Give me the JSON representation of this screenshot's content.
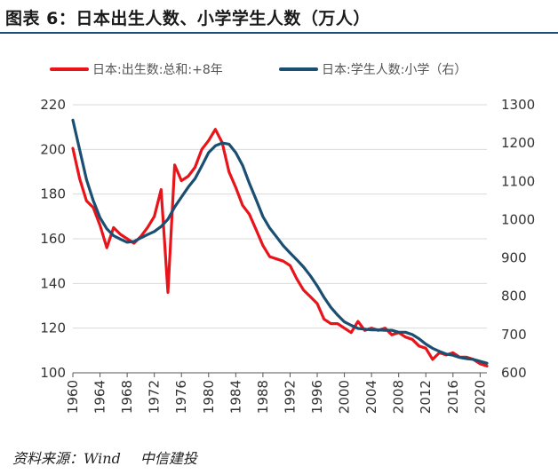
{
  "title": "图表 6：日本出生人数、小学学生人数（万人）",
  "source": {
    "label": "资料来源：Wind",
    "org": "中信建投"
  },
  "chart_data": {
    "type": "line",
    "x_ticks": [
      "1960",
      "1964",
      "1968",
      "1972",
      "1976",
      "1980",
      "1984",
      "1988",
      "1992",
      "1996",
      "2000",
      "2004",
      "2008",
      "2012",
      "2016",
      "2020"
    ],
    "xlim": [
      1960,
      2021
    ],
    "y_left": {
      "ticks": [
        "100",
        "120",
        "140",
        "160",
        "180",
        "200",
        "220"
      ],
      "lim": [
        100,
        220
      ]
    },
    "y_right": {
      "ticks": [
        "600",
        "700",
        "800",
        "900",
        "1000",
        "1100",
        "1200",
        "1300"
      ],
      "lim": [
        600,
        1300
      ]
    },
    "grid": "horizontal",
    "legend_position": "top",
    "series": [
      {
        "name": "日本:出生数:总和:+8年",
        "axis": "left",
        "color": "#e8141a",
        "x": [
          1960,
          1961,
          1962,
          1963,
          1964,
          1965,
          1966,
          1967,
          1968,
          1969,
          1970,
          1971,
          1972,
          1973,
          1974,
          1975,
          1976,
          1977,
          1978,
          1979,
          1980,
          1981,
          1982,
          1983,
          1984,
          1985,
          1986,
          1987,
          1988,
          1989,
          1990,
          1991,
          1992,
          1993,
          1994,
          1995,
          1996,
          1997,
          1998,
          1999,
          2000,
          2001,
          2002,
          2003,
          2004,
          2005,
          2006,
          2007,
          2008,
          2009,
          2010,
          2011,
          2012,
          2013,
          2014,
          2015,
          2016,
          2017,
          2018,
          2019,
          2020,
          2021
        ],
        "values": [
          200.5,
          187,
          177,
          174,
          166,
          156,
          165,
          162,
          160,
          158,
          161,
          165,
          170,
          182,
          136,
          193,
          186,
          188,
          192,
          200,
          204,
          209,
          203,
          190,
          183,
          175,
          171,
          164,
          157,
          152,
          151,
          150,
          148,
          142,
          137,
          134,
          131,
          124,
          122,
          122,
          120,
          118,
          123,
          119,
          120,
          119,
          120,
          117,
          118,
          116,
          115,
          112,
          111,
          106,
          109,
          108,
          109,
          107,
          107,
          106,
          104,
          103
        ]
      },
      {
        "name": "日本:学生人数:小学（右）",
        "axis": "right",
        "color": "#1b4f72",
        "x": [
          1960,
          1961,
          1962,
          1963,
          1964,
          1965,
          1966,
          1967,
          1968,
          1969,
          1970,
          1971,
          1972,
          1973,
          1974,
          1975,
          1976,
          1977,
          1978,
          1979,
          1980,
          1981,
          1982,
          1983,
          1984,
          1985,
          1986,
          1987,
          1988,
          1989,
          1990,
          1991,
          1992,
          1993,
          1994,
          1995,
          1996,
          1997,
          1998,
          1999,
          2000,
          2001,
          2002,
          2003,
          2004,
          2005,
          2006,
          2007,
          2008,
          2009,
          2010,
          2011,
          2012,
          2013,
          2014,
          2015,
          2016,
          2017,
          2018,
          2019,
          2020,
          2021
        ],
        "values": [
          1260,
          1183,
          1105,
          1050,
          1005,
          976,
          958,
          949,
          941,
          943,
          952,
          961,
          969,
          982,
          1001,
          1033,
          1059,
          1085,
          1107,
          1140,
          1175,
          1193,
          1200,
          1197,
          1175,
          1142,
          1095,
          1052,
          1008,
          978,
          955,
          932,
          913,
          895,
          876,
          853,
          827,
          797,
          771,
          751,
          733,
          724,
          716,
          714,
          712,
          712,
          711,
          711,
          706,
          706,
          700,
          689,
          675,
          664,
          656,
          649,
          646,
          640,
          637,
          635,
          630,
          625
        ]
      }
    ]
  }
}
